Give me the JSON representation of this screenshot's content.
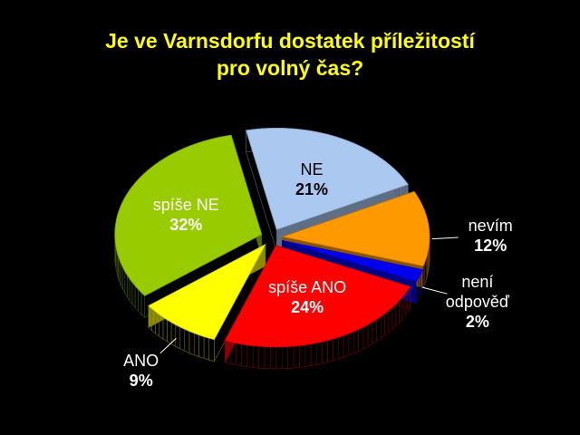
{
  "chart_data": {
    "type": "pie",
    "title": "Je ve Varnsdorfu dostatek příležitostí pro volný čas?",
    "categories": [
      "NE",
      "nevím",
      "není odpověď",
      "spíše ANO",
      "ANO",
      "spíše NE"
    ],
    "values": [
      21,
      12,
      2,
      24,
      9,
      32
    ],
    "value_labels": [
      "21%",
      "12%",
      "2%",
      "24%",
      "9%",
      "32%"
    ],
    "colors": [
      "#aac8f0",
      "#ff9900",
      "#0000ee",
      "#ff0000",
      "#ffff00",
      "#99cc00"
    ]
  }
}
